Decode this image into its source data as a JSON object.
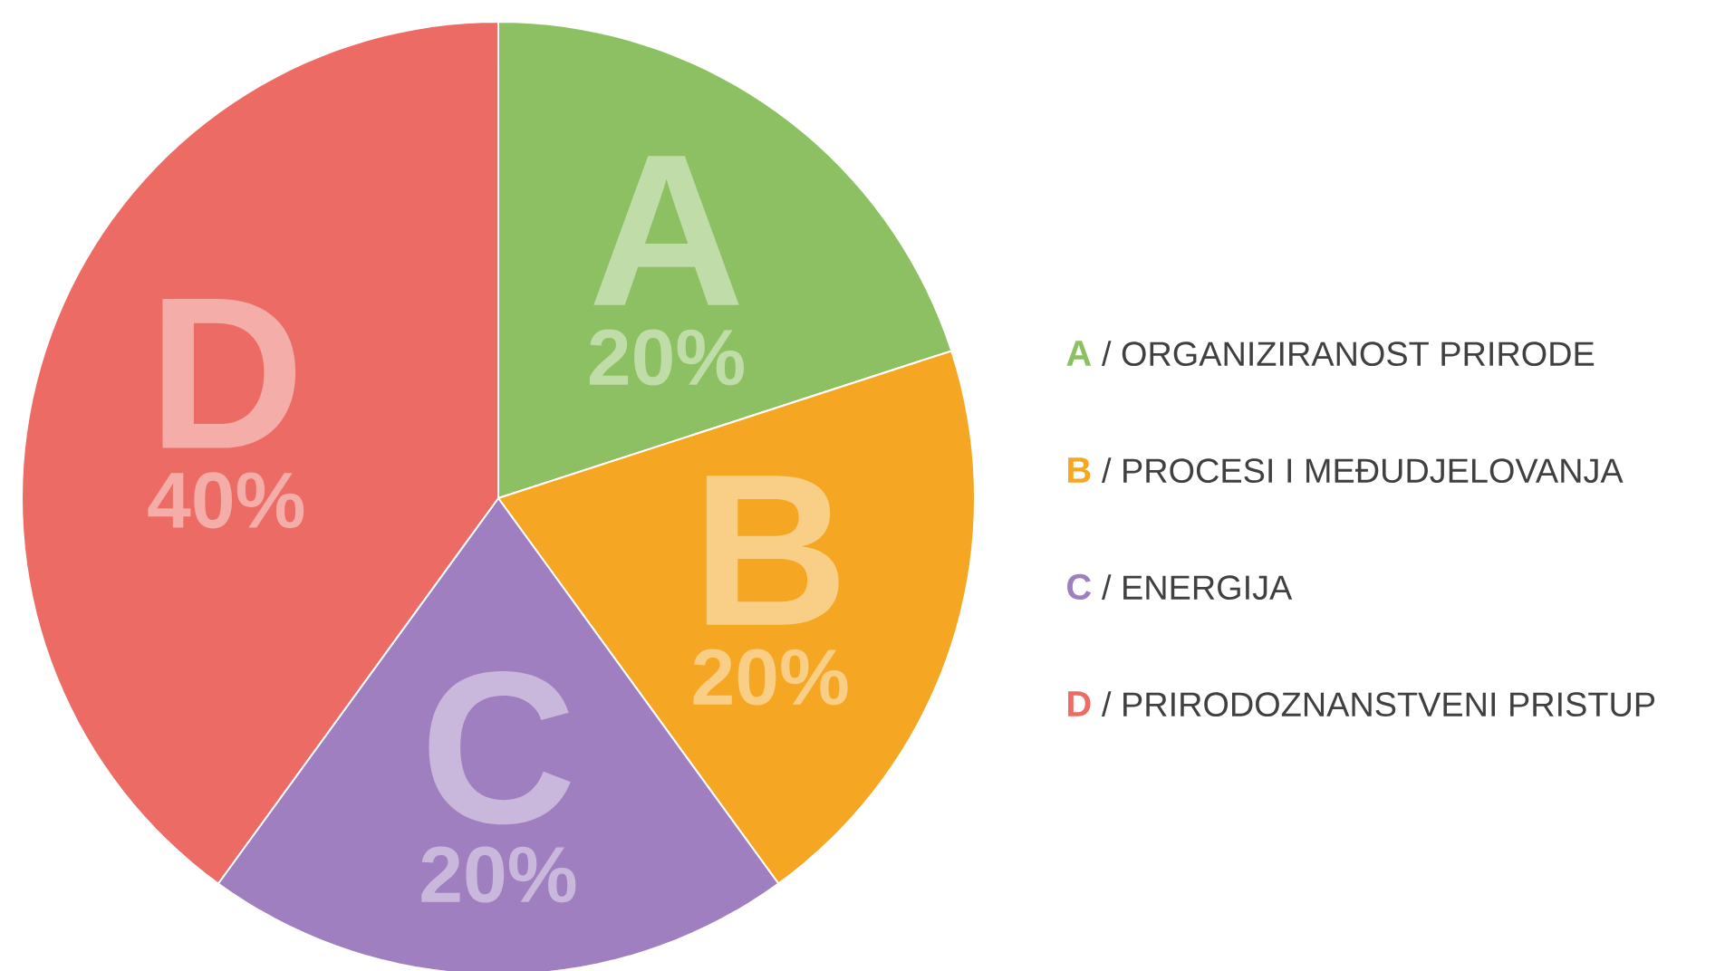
{
  "chart_data": {
    "type": "pie",
    "categories": [
      "A",
      "B",
      "C",
      "D"
    ],
    "values": [
      20,
      20,
      20,
      40
    ],
    "value_labels": [
      "20%",
      "20%",
      "20%",
      "40%"
    ],
    "colors": [
      "#8cc063",
      "#f5a623",
      "#a07fc0",
      "#ec6b64"
    ],
    "annotations": [
      "/ ORGANIZIRANOST PRIRODE",
      "/ PROCESI I MEĐUDJELOVANJA",
      "/ ENERGIJA",
      "/ PRIRODOZNANSTVENI PRISTUP"
    ]
  }
}
